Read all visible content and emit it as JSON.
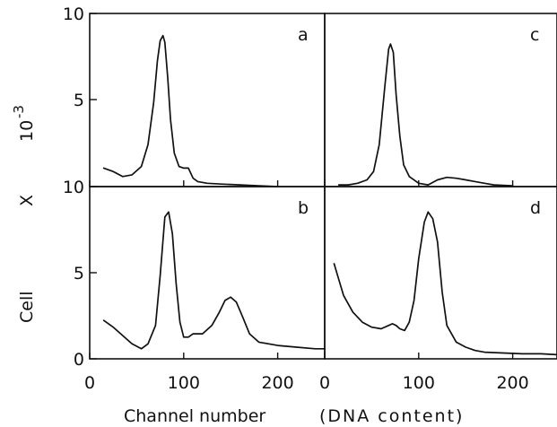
{
  "chart_data": {
    "type": "line",
    "y_axis_label_parts": [
      "Cell",
      "X",
      "10",
      "-3"
    ],
    "x_axis_label_left": "Channel number",
    "x_axis_label_right": "(DNA content)",
    "xlim": [
      0,
      250
    ],
    "ylim": [
      0,
      10
    ],
    "x_ticks": [
      "0",
      "100",
      "200"
    ],
    "x_ticks_right": [
      "0",
      "100",
      "200"
    ],
    "y_ticks_top": [
      "10",
      "5"
    ],
    "y_ticks_bottom": [
      "10",
      "5",
      "0"
    ],
    "panels": [
      {
        "id": "a",
        "label": "a",
        "x": [
          15,
          25,
          35,
          45,
          55,
          62,
          68,
          72,
          75,
          78,
          80,
          83,
          86,
          90,
          95,
          100,
          105,
          110,
          115,
          125,
          140,
          160,
          180,
          200
        ],
        "y": [
          1.1,
          0.9,
          0.6,
          0.7,
          1.2,
          2.5,
          5.0,
          7.5,
          8.7,
          9.0,
          8.6,
          6.5,
          4.0,
          2.0,
          1.2,
          1.1,
          1.1,
          0.5,
          0.3,
          0.2,
          0.15,
          0.1,
          0.05,
          0.0
        ]
      },
      {
        "id": "b",
        "label": "b",
        "x": [
          15,
          25,
          35,
          45,
          55,
          62,
          70,
          75,
          80,
          84,
          88,
          92,
          96,
          100,
          105,
          110,
          120,
          130,
          138,
          144,
          150,
          156,
          162,
          170,
          180,
          200,
          220,
          240,
          250
        ],
        "y": [
          2.3,
          1.9,
          1.4,
          0.9,
          0.6,
          0.9,
          2.0,
          5.0,
          8.5,
          8.8,
          7.5,
          4.5,
          2.2,
          1.3,
          1.3,
          1.5,
          1.5,
          2.0,
          2.8,
          3.5,
          3.7,
          3.4,
          2.6,
          1.5,
          1.0,
          0.8,
          0.7,
          0.6,
          0.6
        ]
      },
      {
        "id": "c",
        "label": "c",
        "x": [
          15,
          25,
          35,
          45,
          52,
          58,
          64,
          68,
          70,
          73,
          76,
          80,
          84,
          90,
          100,
          110,
          120,
          130,
          140,
          150,
          160,
          170,
          180,
          200
        ],
        "y": [
          0.1,
          0.1,
          0.2,
          0.4,
          0.9,
          2.5,
          6.0,
          8.2,
          8.5,
          8.0,
          5.5,
          3.0,
          1.3,
          0.6,
          0.2,
          0.1,
          0.4,
          0.55,
          0.5,
          0.4,
          0.3,
          0.2,
          0.1,
          0.05
        ]
      },
      {
        "id": "d",
        "label": "d",
        "x": [
          10,
          20,
          30,
          40,
          50,
          60,
          68,
          72,
          76,
          80,
          85,
          90,
          95,
          100,
          106,
          110,
          115,
          120,
          125,
          130,
          140,
          150,
          160,
          170,
          190,
          210,
          230,
          250
        ],
        "y": [
          5.7,
          3.8,
          2.8,
          2.2,
          1.9,
          1.8,
          2.0,
          2.1,
          2.0,
          1.8,
          1.7,
          2.2,
          3.5,
          6.0,
          8.2,
          8.8,
          8.4,
          7.0,
          4.0,
          2.0,
          1.0,
          0.7,
          0.5,
          0.4,
          0.35,
          0.3,
          0.3,
          0.25
        ]
      }
    ]
  }
}
